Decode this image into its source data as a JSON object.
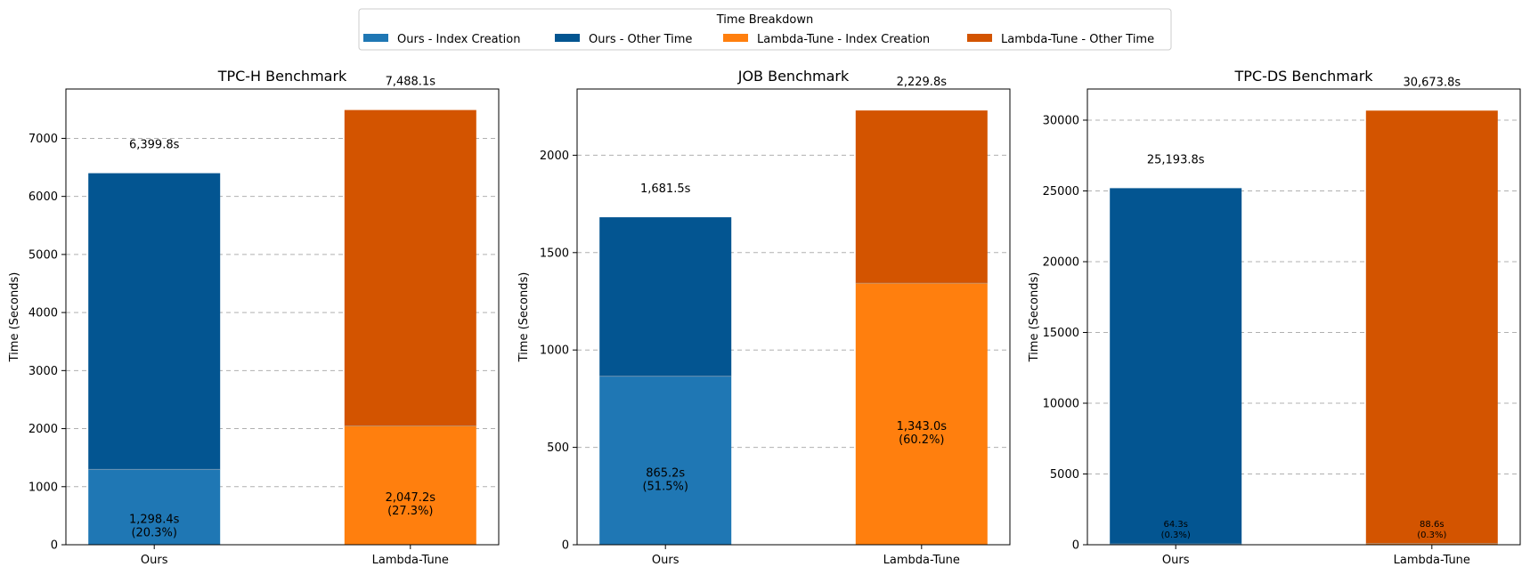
{
  "legend": {
    "title": "Time Breakdown",
    "items": [
      {
        "label": "Ours - Index Creation",
        "color": "#1f77b4"
      },
      {
        "label": "Ours - Other Time",
        "color": "#035591"
      },
      {
        "label": "Lambda-Tune - Index Creation",
        "color": "#ff7f0e"
      },
      {
        "label": "Lambda-Tune - Other Time",
        "color": "#d35400"
      }
    ]
  },
  "chart_data": [
    {
      "type": "bar",
      "stacked": true,
      "title": "TPC-H Benchmark",
      "ylabel": "Time (Seconds)",
      "categories": [
        "Ours",
        "Lambda-Tune"
      ],
      "series": [
        {
          "name": "Index Creation",
          "values": [
            1298.4,
            2047.2
          ]
        },
        {
          "name": "Other Time",
          "values": [
            5101.4,
            5440.9
          ]
        }
      ],
      "totals": [
        6399.8,
        7488.1
      ],
      "total_labels": [
        "6,399.8s",
        "7,488.1s"
      ],
      "index_labels": [
        "1,298.4s\n(20.3%)",
        "2,047.2s\n(27.3%)"
      ],
      "ylim": [
        0,
        7850
      ],
      "yticks": [
        0,
        1000,
        2000,
        3000,
        4000,
        5000,
        6000,
        7000
      ],
      "grid": true
    },
    {
      "type": "bar",
      "stacked": true,
      "title": "JOB Benchmark",
      "ylabel": "Time (Seconds)",
      "categories": [
        "Ours",
        "Lambda-Tune"
      ],
      "series": [
        {
          "name": "Index Creation",
          "values": [
            865.2,
            1343.0
          ]
        },
        {
          "name": "Other Time",
          "values": [
            816.3,
            886.8
          ]
        }
      ],
      "totals": [
        1681.5,
        2229.8
      ],
      "total_labels": [
        "1,681.5s",
        "2,229.8s"
      ],
      "index_labels": [
        "865.2s\n(51.5%)",
        "1,343.0s\n(60.2%)"
      ],
      "ylim": [
        0,
        2340
      ],
      "yticks": [
        0,
        500,
        1000,
        1500,
        2000
      ],
      "grid": true
    },
    {
      "type": "bar",
      "stacked": true,
      "title": "TPC-DS Benchmark",
      "ylabel": "Time (Seconds)",
      "categories": [
        "Ours",
        "Lambda-Tune"
      ],
      "series": [
        {
          "name": "Index Creation",
          "values": [
            64.3,
            88.6
          ]
        },
        {
          "name": "Other Time",
          "values": [
            25129.5,
            30585.2
          ]
        }
      ],
      "totals": [
        25193.8,
        30673.8
      ],
      "total_labels": [
        "25,193.8s",
        "30,673.8s"
      ],
      "index_labels": [
        "64.3s\n(0.3%)",
        "88.6s\n(0.3%)"
      ],
      "ylim": [
        0,
        32200
      ],
      "yticks": [
        0,
        5000,
        10000,
        15000,
        20000,
        25000,
        30000
      ],
      "grid": true
    }
  ]
}
